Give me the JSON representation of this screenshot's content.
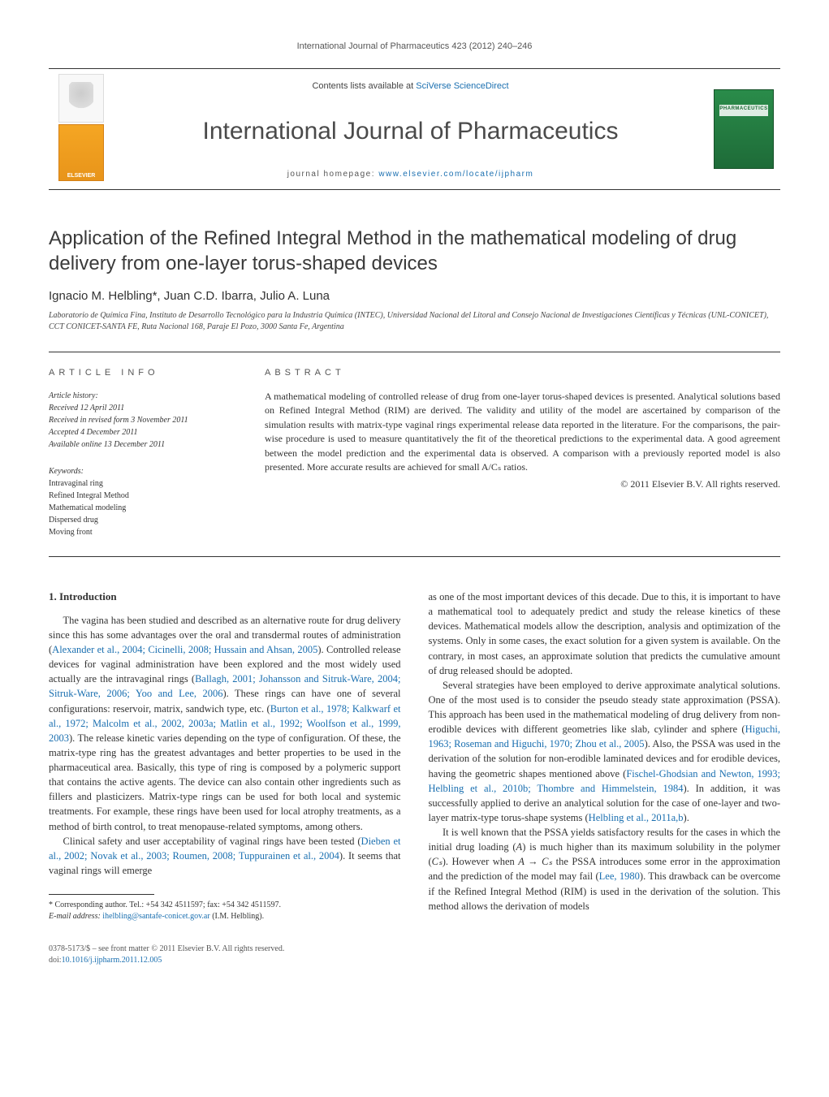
{
  "running_head": "International Journal of Pharmaceutics 423 (2012) 240–246",
  "masthead": {
    "publisher_name": "ELSEVIER",
    "contents_prefix": "Contents lists available at ",
    "contents_link": "SciVerse ScienceDirect",
    "journal_title": "International Journal of Pharmaceutics",
    "homepage_prefix": "journal homepage: ",
    "homepage_link": "www.elsevier.com/locate/ijpharm",
    "cover_label": "PHARMACEUTICS"
  },
  "article": {
    "title": "Application of the Refined Integral Method in the mathematical modeling of drug delivery from one-layer torus-shaped devices",
    "authors_html": "Ignacio M. Helbling*, Juan C.D. Ibarra, Julio A. Luna",
    "affiliation": "Laboratorio de Química Fina, Instituto de Desarrollo Tecnológico para la Industria Química (INTEC), Universidad Nacional del Litoral and Consejo Nacional de Investigaciones Científicas y Técnicas (UNL-CONICET), CCT CONICET-SANTA FE, Ruta Nacional 168, Paraje El Pozo, 3000 Santa Fe, Argentina"
  },
  "info": {
    "heading": "ARTICLE INFO",
    "history_label": "Article history:",
    "received": "Received 12 April 2011",
    "revised": "Received in revised form 3 November 2011",
    "accepted": "Accepted 4 December 2011",
    "online": "Available online 13 December 2011",
    "keywords_label": "Keywords:",
    "keywords": [
      "Intravaginal ring",
      "Refined Integral Method",
      "Mathematical modeling",
      "Dispersed drug",
      "Moving front"
    ]
  },
  "abstract": {
    "heading": "ABSTRACT",
    "text": "A mathematical modeling of controlled release of drug from one-layer torus-shaped devices is presented. Analytical solutions based on Refined Integral Method (RIM) are derived. The validity and utility of the model are ascertained by comparison of the simulation results with matrix-type vaginal rings experimental release data reported in the literature. For the comparisons, the pair-wise procedure is used to measure quantitatively the fit of the theoretical predictions to the experimental data. A good agreement between the model prediction and the experimental data is observed. A comparison with a previously reported model is also presented. More accurate results are achieved for small A/Cₛ ratios.",
    "copyright": "© 2011 Elsevier B.V. All rights reserved."
  },
  "body": {
    "section_heading": "1. Introduction",
    "p1_a": "The vagina has been studied and described as an alternative route for drug delivery since this has some advantages over the oral and transdermal routes of administration (",
    "p1_cite1": "Alexander et al., 2004; Cicinelli, 2008; Hussain and Ahsan, 2005",
    "p1_b": "). Controlled release devices for vaginal administration have been explored and the most widely used actually are the intravaginal rings (",
    "p1_cite2": "Ballagh, 2001; Johansson and Sitruk-Ware, 2004; Sitruk-Ware, 2006; Yoo and Lee, 2006",
    "p1_c": "). These rings can have one of several configurations: reservoir, matrix, sandwich type, etc. (",
    "p1_cite3": "Burton et al., 1978; Kalkwarf et al., 1972; Malcolm et al., 2002, 2003a; Matlin et al., 1992; Woolfson et al., 1999, 2003",
    "p1_d": "). The release kinetic varies depending on the type of configuration. Of these, the matrix-type ring has the greatest advantages and better properties to be used in the pharmaceutical area. Basically, this type of ring is composed by a polymeric support that contains the active agents. The device can also contain other ingredients such as fillers and plasticizers. Matrix-type rings can be used for both local and systemic treatments. For example, these rings have been used for local atrophy treatments, as a method of birth control, to treat menopause-related symptoms, among others.",
    "p2_a": "Clinical safety and user acceptability of vaginal rings have been tested (",
    "p2_cite1": "Dieben et al., 2002; Novak et al., 2003; Roumen, 2008; Tuppurainen et al., 2004",
    "p2_b": "). It seems that vaginal rings will emerge",
    "p3": "as one of the most important devices of this decade. Due to this, it is important to have a mathematical tool to adequately predict and study the release kinetics of these devices. Mathematical models allow the description, analysis and optimization of the systems. Only in some cases, the exact solution for a given system is available. On the contrary, in most cases, an approximate solution that predicts the cumulative amount of drug released should be adopted.",
    "p4_a": "Several strategies have been employed to derive approximate analytical solutions. One of the most used is to consider the pseudo steady state approximation (PSSA). This approach has been used in the mathematical modeling of drug delivery from non-erodible devices with different geometries like slab, cylinder and sphere (",
    "p4_cite1": "Higuchi, 1963; Roseman and Higuchi, 1970; Zhou et al., 2005",
    "p4_b": "). Also, the PSSA was used in the derivation of the solution for non-erodible laminated devices and for erodible devices, having the geometric shapes mentioned above (",
    "p4_cite2": "Fischel-Ghodsian and Newton, 1993; Helbling et al., 2010b; Thombre and Himmelstein, 1984",
    "p4_c": "). In addition, it was successfully applied to derive an analytical solution for the case of one-layer and two-layer matrix-type torus-shape systems (",
    "p4_cite3": "Helbling et al., 2011a,b",
    "p4_d": ").",
    "p5_a": "It is well known that the PSSA yields satisfactory results for the cases in which the initial drug loading (",
    "p5_i1": "A",
    "p5_b": ") is much higher than its maximum solubility in the polymer (",
    "p5_i2": "Cₛ",
    "p5_c": "). However when ",
    "p5_i3": "A → Cₛ",
    "p5_d": " the PSSA introduces some error in the approximation and the prediction of the model may fail (",
    "p5_cite1": "Lee, 1980",
    "p5_e": "). This drawback can be overcome if the Refined Integral Method (RIM) is used in the derivation of the solution. This method allows the derivation of models"
  },
  "footnote": {
    "corr": "* Corresponding author. Tel.: +54 342 4511597; fax: +54 342 4511597.",
    "email_label": "E-mail address: ",
    "email": "ihelbling@santafe-conicet.gov.ar",
    "email_suffix": " (I.M. Helbling)."
  },
  "bottom": {
    "issn": "0378-5173/$ – see front matter © 2011 Elsevier B.V. All rights reserved.",
    "doi_prefix": "doi:",
    "doi": "10.1016/j.ijpharm.2011.12.005"
  },
  "colors": {
    "link": "#1a6fb0",
    "text": "#333333",
    "heading_gray": "#555555",
    "publisher_orange": "#f5a623",
    "cover_green": "#2a8c4a"
  }
}
